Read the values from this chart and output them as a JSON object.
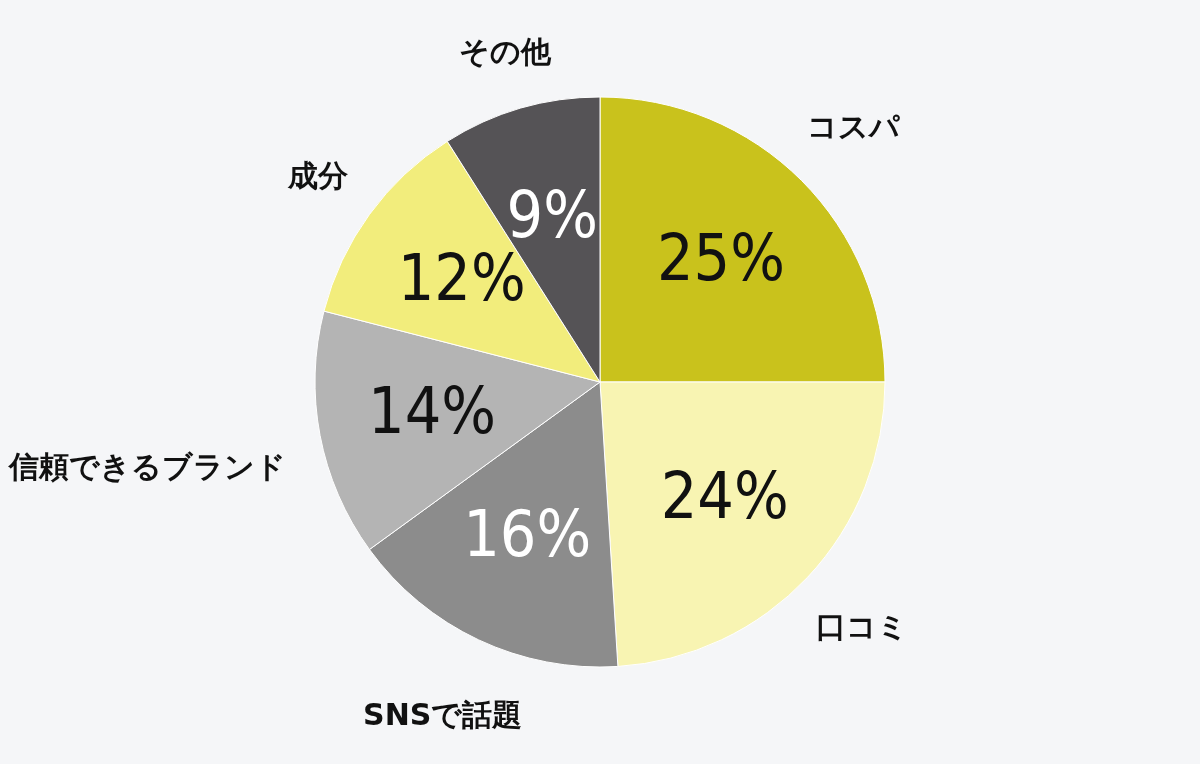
{
  "chart_data": {
    "type": "pie",
    "categories": [
      "コスパ",
      "口コミ",
      "SNSで話題",
      "信頼できるブランド",
      "成分",
      "その他"
    ],
    "values": [
      25,
      24,
      16,
      14,
      12,
      9
    ],
    "colors": [
      "#c9c21c",
      "#f8f4b2",
      "#8c8c8c",
      "#b4b4b4",
      "#f2ed7c",
      "#555356"
    ],
    "value_labels": [
      "25%",
      "24%",
      "16%",
      "14%",
      "12%",
      "9%"
    ]
  }
}
